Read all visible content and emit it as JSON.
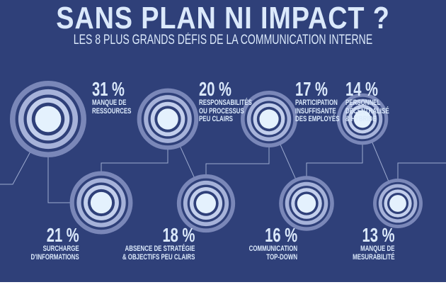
{
  "header": {
    "title": "SANS PLAN NI IMPACT ?",
    "subtitle": "LES 8 PLUS GRANDS DÉFIS DE LA COMMUNICATION INTERNE"
  },
  "colors": {
    "background": "#2f4079",
    "text": "#dbe9fb"
  },
  "challenges": [
    {
      "percent": "31 %",
      "value": 31,
      "label": [
        "MANQUE DE",
        "RESSOURCES"
      ]
    },
    {
      "percent": "21 %",
      "value": 21,
      "label": [
        "SURCHARGE",
        "D'INFORMATIONS"
      ]
    },
    {
      "percent": "20 %",
      "value": 20,
      "label": [
        "RESPONSABILITÉS",
        "OU PROCESSUS",
        "PEU CLAIRS"
      ]
    },
    {
      "percent": "18 %",
      "value": 18,
      "label": [
        "ABSENCE DE STRATÉGIE",
        "& OBJECTIFS PEU CLAIRS"
      ]
    },
    {
      "percent": "17 %",
      "value": 17,
      "label": [
        "PARTICIPATION",
        "INSUFFISANTE",
        "DES EMPLOYÉS"
      ]
    },
    {
      "percent": "16 %",
      "value": 16,
      "label": [
        "COMMUNICATION",
        "TOP-DOWN"
      ]
    },
    {
      "percent": "14 %",
      "value": 14,
      "label": [
        "PERSONNEL",
        "DÉCENTRALISÉ",
        "& HYBRIDE"
      ]
    },
    {
      "percent": "13 %",
      "value": 13,
      "label": [
        "MANQUE DE",
        "MESURABILITÉ"
      ]
    }
  ]
}
